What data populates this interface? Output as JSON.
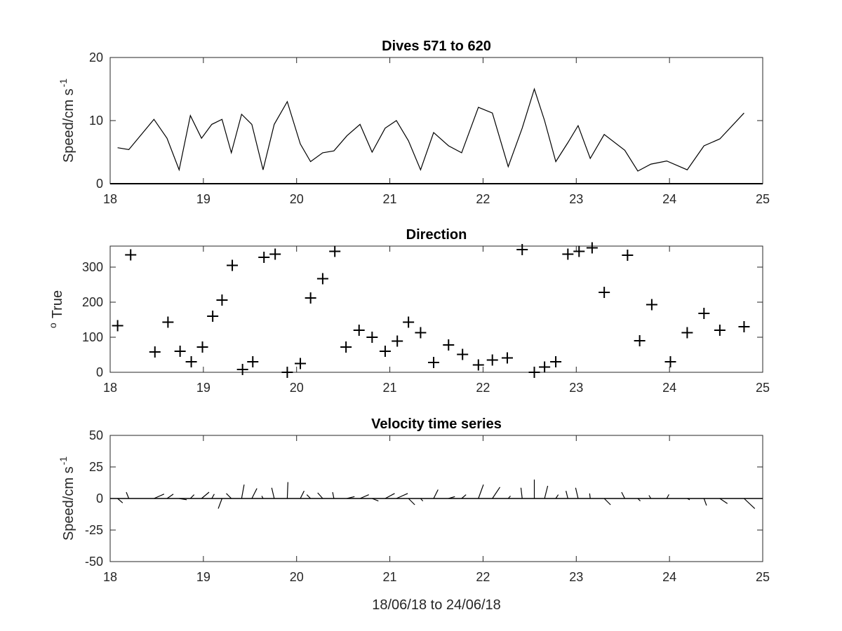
{
  "chart_data": [
    {
      "type": "line",
      "title": "Dives 571 to 620",
      "ylabel": "Speed/cm s",
      "ylabel_sup": "-1",
      "xlabel": "",
      "xlim": [
        18,
        25
      ],
      "ylim": [
        0,
        20
      ],
      "xticks": [
        "18",
        "19",
        "20",
        "21",
        "22",
        "23",
        "24",
        "25"
      ],
      "yticks": [
        "0",
        "10",
        "20"
      ],
      "grid": false,
      "series": [
        {
          "x": [
            18.08,
            18.2,
            18.47,
            18.61,
            18.74,
            18.86,
            18.98,
            19.09,
            19.2,
            19.3,
            19.41,
            19.52,
            19.64,
            19.76,
            19.9,
            20.04,
            20.15,
            20.28,
            20.4,
            20.54,
            20.68,
            20.81,
            20.95,
            21.07,
            21.2,
            21.33,
            21.47,
            21.63,
            21.77,
            21.95,
            22.1,
            22.27,
            22.42,
            22.55,
            22.66,
            22.78,
            22.91,
            23.02,
            23.15,
            23.3,
            23.52,
            23.66,
            23.8,
            23.97,
            24.19,
            24.37,
            24.54,
            24.8
          ],
          "y": [
            5.7,
            5.4,
            10.2,
            7.2,
            2.2,
            10.8,
            7.2,
            9.4,
            10.2,
            4.9,
            11.0,
            9.4,
            2.2,
            9.4,
            13.0,
            6.3,
            3.5,
            4.9,
            5.2,
            7.6,
            9.4,
            5.0,
            8.8,
            10.0,
            6.8,
            2.2,
            8.1,
            6.0,
            4.9,
            12.1,
            11.2,
            2.7,
            8.8,
            15.0,
            10.0,
            3.5,
            6.5,
            9.2,
            4.0,
            7.8,
            5.3,
            2.0,
            3.1,
            3.6,
            2.2,
            6.0,
            7.1,
            11.2
          ]
        }
      ]
    },
    {
      "type": "scatter",
      "title": "Direction",
      "ylabel": "True",
      "ylabel_prefix": "o",
      "xlabel": "",
      "xlim": [
        18,
        25
      ],
      "ylim": [
        0,
        360
      ],
      "xticks": [
        "18",
        "19",
        "20",
        "21",
        "22",
        "23",
        "24",
        "25"
      ],
      "yticks": [
        "0",
        "100",
        "200",
        "300"
      ],
      "grid": false,
      "marker": "+",
      "series": [
        {
          "x": [
            18.08,
            18.22,
            18.48,
            18.62,
            18.75,
            18.87,
            18.99,
            19.1,
            19.2,
            19.31,
            19.42,
            19.53,
            19.65,
            19.77,
            19.9,
            20.04,
            20.15,
            20.28,
            20.41,
            20.53,
            20.67,
            20.81,
            20.95,
            21.08,
            21.2,
            21.33,
            21.47,
            21.63,
            21.78,
            21.95,
            22.1,
            22.26,
            22.42,
            22.55,
            22.66,
            22.78,
            22.91,
            23.03,
            23.17,
            23.3,
            23.55,
            23.68,
            23.81,
            24.01,
            24.19,
            24.37,
            24.54,
            24.8
          ],
          "y": [
            133,
            335,
            58,
            143,
            60,
            30,
            72,
            160,
            206,
            305,
            8,
            30,
            328,
            337,
            0,
            25,
            212,
            267,
            345,
            72,
            120,
            100,
            60,
            89,
            143,
            113,
            28,
            78,
            51,
            21,
            35,
            41,
            350,
            0,
            15,
            30,
            337,
            345,
            355,
            228,
            334,
            90,
            193,
            30,
            113,
            168,
            120,
            130
          ]
        }
      ]
    },
    {
      "type": "line",
      "subtype": "stick",
      "title": "Velocity time series",
      "ylabel": "Speed/cm s",
      "ylabel_sup": "-1",
      "xlabel": "18/06/18 to 24/06/18",
      "xlim": [
        18,
        25
      ],
      "ylim": [
        -50,
        50
      ],
      "xticks": [
        "18",
        "19",
        "20",
        "21",
        "22",
        "23",
        "24",
        "25"
      ],
      "yticks": [
        "-50",
        "-25",
        "0",
        "25",
        "50"
      ],
      "grid": false,
      "sticks_comment": "u,v components in speed units, one stick per dive starting at (t, 0)",
      "series": [
        {
          "t": [
            18.08,
            18.2,
            18.47,
            18.61,
            18.74,
            18.86,
            18.98,
            19.09,
            19.2,
            19.3,
            19.41,
            19.52,
            19.64,
            19.76,
            19.9,
            20.04,
            20.15,
            20.28,
            20.4,
            20.54,
            20.68,
            20.81,
            20.95,
            21.07,
            21.2,
            21.33,
            21.47,
            21.63,
            21.77,
            21.95,
            22.1,
            22.27,
            22.42,
            22.55,
            22.66,
            22.78,
            22.91,
            23.02,
            23.15,
            23.3,
            23.52,
            23.66,
            23.8,
            23.97,
            24.19,
            24.37,
            24.54,
            24.8
          ],
          "u": [
            4,
            -2,
            8,
            5,
            6,
            3,
            6,
            2,
            -3,
            -4,
            2,
            4,
            -1,
            -2,
            0.5,
            3,
            -3,
            -4,
            -1,
            6,
            7,
            5,
            7.5,
            9,
            5,
            1.8,
            3.5,
            5,
            3.5,
            4,
            6,
            1.8,
            -1,
            0,
            2.5,
            2,
            -1.5,
            -2,
            -0.5,
            5,
            -2.5,
            2,
            -1.5,
            1.8,
            2,
            2,
            6,
            8.5
          ],
          "v": [
            -3.5,
            5,
            3.5,
            3.5,
            -1,
            3,
            5,
            3.5,
            -8,
            4,
            11,
            8,
            2,
            8.5,
            13,
            6,
            3,
            4.5,
            5,
            1.5,
            3,
            -2,
            4,
            4,
            -5,
            -2,
            7,
            1.5,
            3,
            11,
            9,
            2,
            8.5,
            15,
            10,
            3,
            6,
            8.5,
            4,
            -5,
            5,
            -2,
            2.5,
            3.2,
            -1,
            -5.5,
            -4,
            -8
          ]
        }
      ]
    }
  ]
}
